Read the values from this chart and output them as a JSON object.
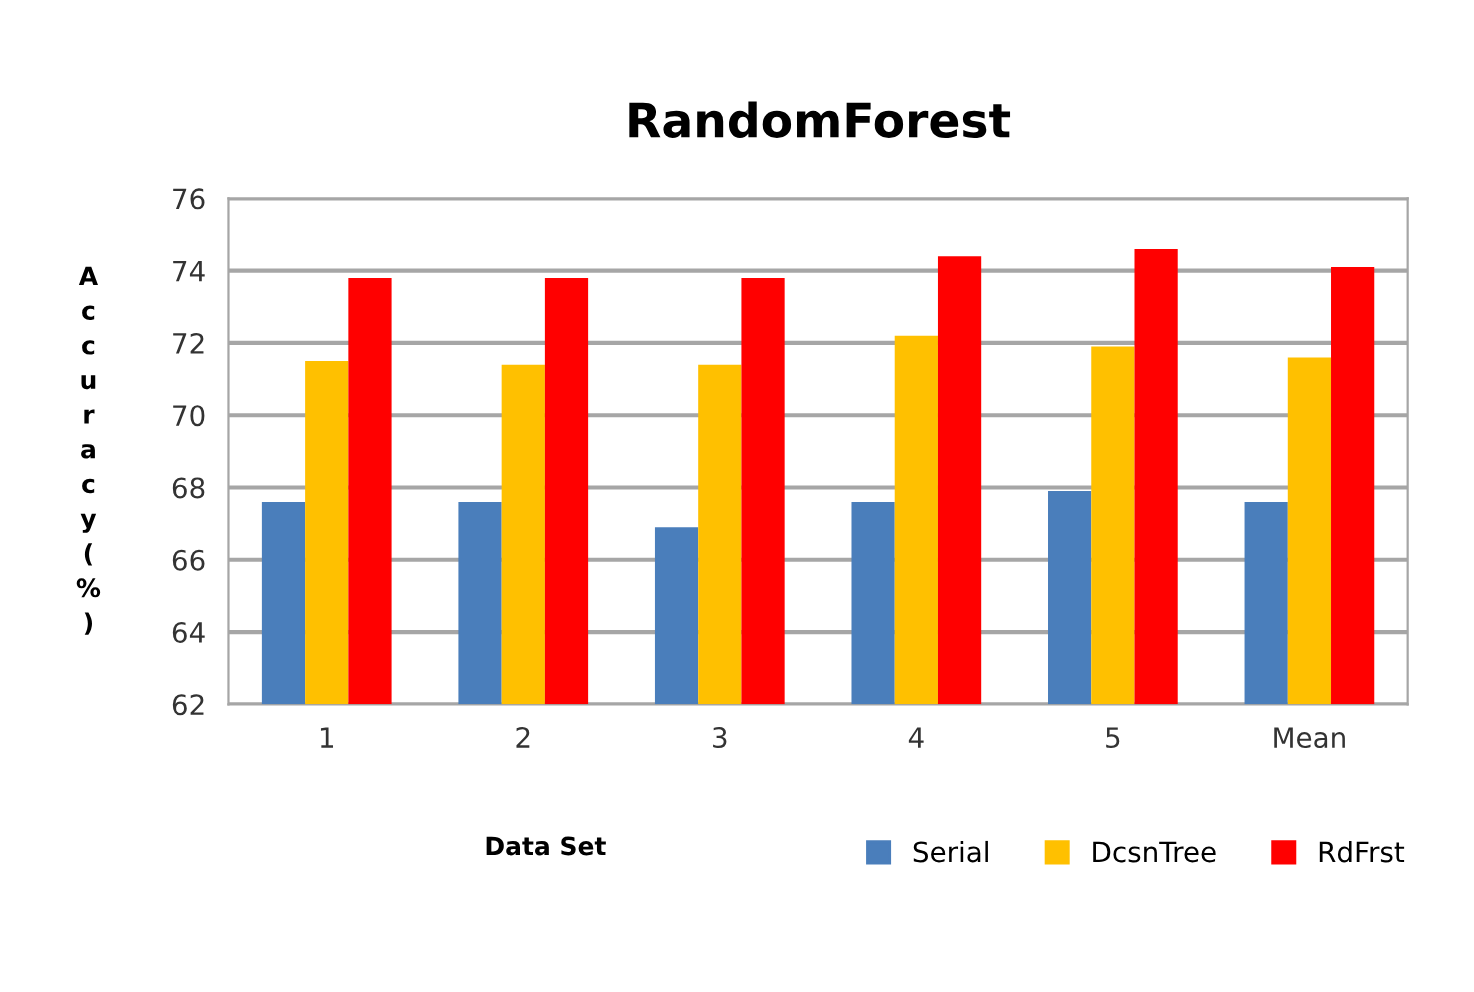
{
  "chart_data": {
    "type": "bar",
    "title": "RandomForest",
    "xlabel": "Data Set",
    "ylabel": "Accuracy(%)",
    "categories": [
      "1",
      "2",
      "3",
      "4",
      "5",
      "Mean"
    ],
    "series": [
      {
        "name": "Serial",
        "color": "#4a7ebb",
        "values": [
          67.6,
          67.6,
          66.9,
          67.6,
          67.9,
          67.6
        ]
      },
      {
        "name": "DcsnTree",
        "color": "#ffc000",
        "values": [
          71.5,
          71.4,
          71.4,
          72.2,
          71.9,
          71.6
        ]
      },
      {
        "name": "RdFrst",
        "color": "#ff0000",
        "values": [
          73.8,
          73.8,
          73.8,
          74.4,
          74.6,
          74.1
        ]
      }
    ],
    "ylim": [
      62,
      76
    ],
    "yticks": [
      62,
      64,
      66,
      68,
      70,
      72,
      74,
      76
    ],
    "grid": "y",
    "legend": "bottom right"
  }
}
